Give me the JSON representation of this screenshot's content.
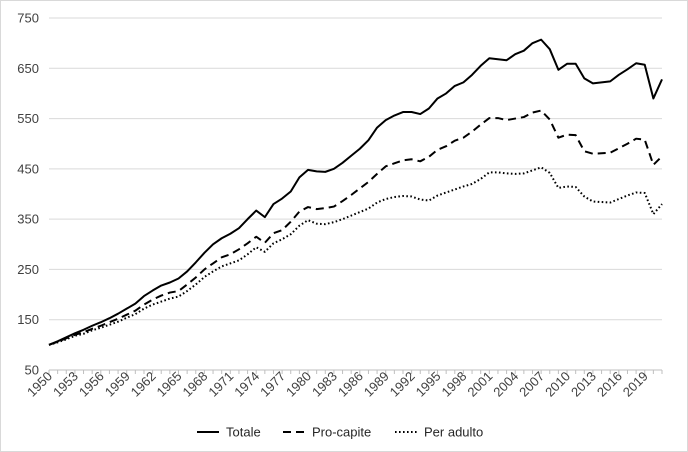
{
  "chart_data": {
    "type": "line",
    "title": "",
    "xlabel": "",
    "ylabel": "",
    "ylim": [
      50,
      750
    ],
    "yticks": [
      50,
      150,
      250,
      350,
      450,
      550,
      650,
      750
    ],
    "y_tick_labels": [
      "50",
      "150",
      "250",
      "350",
      "450",
      "550",
      "650",
      "750"
    ],
    "x_tick_labels": [
      "1950",
      "1953",
      "1956",
      "1959",
      "1962",
      "1965",
      "1968",
      "1971",
      "1974",
      "1977",
      "1980",
      "1983",
      "1986",
      "1989",
      "1992",
      "1995",
      "1998",
      "2001",
      "2004",
      "2007",
      "2010",
      "2013",
      "2016",
      "2019"
    ],
    "x": [
      1950,
      1951,
      1952,
      1953,
      1954,
      1955,
      1956,
      1957,
      1958,
      1959,
      1960,
      1961,
      1962,
      1963,
      1964,
      1965,
      1966,
      1967,
      1968,
      1969,
      1970,
      1971,
      1972,
      1973,
      1974,
      1975,
      1976,
      1977,
      1978,
      1979,
      1980,
      1981,
      1982,
      1983,
      1984,
      1985,
      1986,
      1987,
      1988,
      1989,
      1990,
      1991,
      1992,
      1993,
      1994,
      1995,
      1996,
      1997,
      1998,
      1999,
      2000,
      2001,
      2002,
      2003,
      2004,
      2005,
      2006,
      2007,
      2008,
      2009,
      2010,
      2011,
      2012,
      2013,
      2014,
      2015,
      2016,
      2017,
      2018,
      2019,
      2020,
      2021
    ],
    "grid": "horizontal",
    "legend_position": "bottom",
    "series": [
      {
        "name": "Totale",
        "style": "solid",
        "values": [
          100,
          107,
          115,
          123,
          130,
          138,
          145,
          153,
          162,
          172,
          182,
          197,
          208,
          218,
          224,
          232,
          246,
          264,
          283,
          300,
          312,
          321,
          332,
          350,
          367,
          354,
          380,
          391,
          405,
          433,
          448,
          445,
          444,
          450,
          462,
          476,
          490,
          507,
          532,
          547,
          556,
          563,
          563,
          559,
          570,
          590,
          600,
          615,
          622,
          637,
          655,
          670,
          668,
          666,
          678,
          685,
          700,
          707,
          688,
          647,
          659,
          659,
          630,
          620,
          622,
          624,
          637,
          648,
          660,
          657,
          590,
          628
        ]
      },
      {
        "name": "Pro-capite",
        "style": "dashed",
        "values": [
          100,
          106,
          113,
          120,
          125,
          132,
          138,
          145,
          152,
          160,
          168,
          180,
          190,
          198,
          204,
          207,
          220,
          234,
          250,
          262,
          274,
          280,
          290,
          302,
          315,
          303,
          322,
          328,
          345,
          365,
          374,
          370,
          372,
          375,
          386,
          398,
          411,
          424,
          440,
          455,
          461,
          467,
          469,
          465,
          474,
          488,
          495,
          506,
          512,
          524,
          538,
          551,
          551,
          547,
          550,
          553,
          562,
          566,
          548,
          512,
          518,
          517,
          485,
          480,
          481,
          482,
          491,
          500,
          510,
          508,
          458,
          475
        ]
      },
      {
        "name": "Per adulto",
        "style": "dotted",
        "values": [
          100,
          105,
          111,
          118,
          122,
          129,
          134,
          140,
          146,
          154,
          161,
          172,
          180,
          186,
          192,
          196,
          207,
          220,
          235,
          246,
          256,
          262,
          268,
          280,
          294,
          285,
          302,
          310,
          320,
          337,
          348,
          341,
          340,
          344,
          350,
          357,
          364,
          371,
          383,
          390,
          394,
          396,
          395,
          389,
          387,
          397,
          403,
          409,
          415,
          420,
          430,
          443,
          443,
          441,
          440,
          441,
          447,
          453,
          442,
          412,
          415,
          414,
          395,
          385,
          384,
          383,
          390,
          397,
          403,
          402,
          360,
          380
        ]
      }
    ]
  },
  "legend": {
    "items": [
      {
        "label": "Totale",
        "style": "solid"
      },
      {
        "label": "Pro-capite",
        "style": "dashed"
      },
      {
        "label": "Per adulto",
        "style": "dotted"
      }
    ]
  },
  "colors": {
    "lines": "#000000",
    "grid": "#d9d9d9",
    "axis": "#bfbfbf",
    "text": "#404040"
  }
}
